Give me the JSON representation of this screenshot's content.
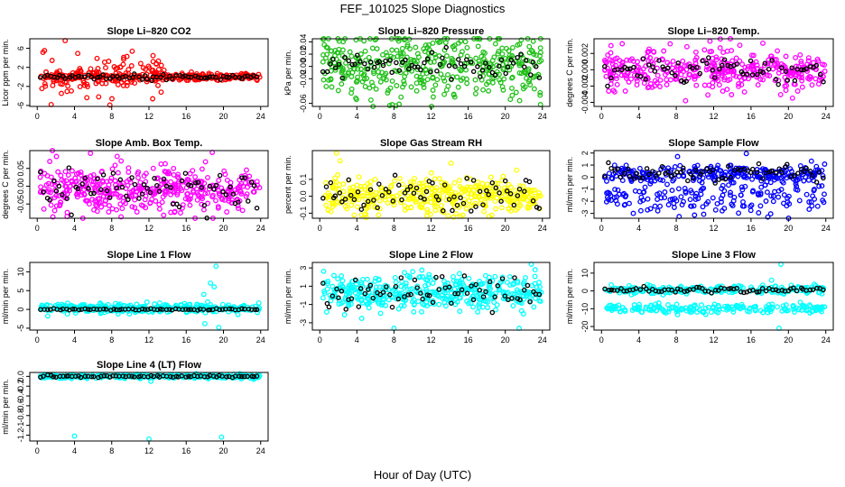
{
  "figure": {
    "title": "FEF_101025  Slope Diagnostics",
    "xlabel": "Hour of Day (UTC)"
  },
  "colors": {
    "axis": "#000000",
    "overlay": "#000000"
  },
  "chart_data": [
    {
      "type": "scatter",
      "title": "Slope Li–820 CO2",
      "ylabel": "Licor ppm per min.",
      "color": "#ff0000",
      "x_ticks": [
        0,
        4,
        8,
        12,
        16,
        20,
        24
      ],
      "y_ticks": [
        -6,
        -2,
        2,
        6
      ],
      "xlim": [
        -0.8,
        24.8
      ],
      "ylim": [
        -6.2,
        8.0
      ],
      "series": [
        {
          "name": "main",
          "band": [
            0,
            14
          ],
          "center": 0.3,
          "spread": 2.0,
          "center2": 0.0,
          "spread2": 0.4,
          "n": 380,
          "outliers": [
            [
              3.0,
              7.6
            ],
            [
              1.5,
              -5.8
            ],
            [
              7.8,
              -5.9
            ],
            [
              12.4,
              -4.6
            ],
            [
              6.6,
              -4.2
            ]
          ]
        },
        {
          "name": "overlay",
          "center": 0.0,
          "spread": 0.3,
          "n": 70
        }
      ]
    },
    {
      "type": "scatter",
      "title": "Slope Li–820 Pressure",
      "ylabel": "kPa per min.",
      "color": "#22c11a",
      "x_ticks": [
        0,
        4,
        8,
        12,
        16,
        20,
        24
      ],
      "y_ticks": [
        -0.06,
        -0.02,
        0.0,
        0.02,
        0.04
      ],
      "xlim": [
        -0.8,
        24.8
      ],
      "ylim": [
        -0.065,
        0.045
      ],
      "series": [
        {
          "name": "main",
          "center": 0.0,
          "spread": 0.025,
          "n": 420,
          "outliers": [
            [
              7.8,
              -0.062
            ],
            [
              23.8,
              -0.062
            ],
            [
              13.0,
              0.04
            ],
            [
              23.8,
              0.03
            ]
          ]
        },
        {
          "name": "overlay",
          "center": 0.0,
          "spread": 0.01,
          "n": 70
        }
      ]
    },
    {
      "type": "scatter",
      "title": "Slope Li–820 Temp.",
      "ylabel": "degrees C per min.",
      "color": "#ff00ff",
      "x_ticks": [
        0,
        4,
        8,
        12,
        16,
        20,
        24
      ],
      "y_ticks": [
        -0.004,
        -0.002,
        0.0,
        0.002
      ],
      "xlim": [
        -0.8,
        24.8
      ],
      "ylim": [
        -0.0045,
        0.0038
      ],
      "series": [
        {
          "name": "main",
          "center": 0.0,
          "spread": 0.0012,
          "n": 380,
          "outliers": [
            [
              11.6,
              0.0035
            ],
            [
              9.0,
              -0.0038
            ],
            [
              14.8,
              0.003
            ]
          ]
        },
        {
          "name": "overlay",
          "center": 0.0,
          "spread": 0.0008,
          "n": 70
        }
      ]
    },
    {
      "type": "scatter",
      "title": "Slope Amb. Box Temp.",
      "ylabel": "degrees C per min.",
      "color": "#ff00ff",
      "x_ticks": [
        0,
        4,
        8,
        12,
        16,
        20,
        24
      ],
      "y_ticks": [
        -0.05,
        0.0,
        0.05
      ],
      "xlim": [
        -0.8,
        24.8
      ],
      "ylim": [
        -0.09,
        0.1
      ],
      "series": [
        {
          "name": "main",
          "center": -0.01,
          "spread": 0.035,
          "n": 420,
          "outliers": [
            [
              18.8,
              0.095
            ],
            [
              3.2,
              -0.085
            ]
          ]
        },
        {
          "name": "overlay",
          "center": -0.01,
          "spread": 0.03,
          "n": 70
        }
      ]
    },
    {
      "type": "scatter",
      "title": "Slope Gas Stream RH",
      "ylabel": "percent per min.",
      "color": "#ffff00",
      "x_ticks": [
        0,
        4,
        8,
        12,
        16,
        20,
        24
      ],
      "y_ticks": [
        -0.1,
        0.0,
        0.1
      ],
      "xlim": [
        -0.8,
        24.8
      ],
      "ylim": [
        -0.13,
        0.27
      ],
      "series": [
        {
          "name": "main",
          "center": 0.0,
          "spread": 0.05,
          "n": 420,
          "outliers": [
            [
              1.8,
              0.255
            ],
            [
              2.2,
              0.21
            ],
            [
              5.0,
              -0.125
            ]
          ]
        },
        {
          "name": "overlay",
          "center": 0.0,
          "spread": 0.05,
          "n": 70
        }
      ]
    },
    {
      "type": "scatter",
      "title": "Slope Sample Flow",
      "ylabel": "ml/min per min.",
      "color": "#0000ff",
      "x_ticks": [
        0,
        4,
        8,
        12,
        16,
        20,
        24
      ],
      "y_ticks": [
        -3,
        -2,
        -1,
        0,
        1,
        2
      ],
      "xlim": [
        -0.8,
        24.8
      ],
      "ylim": [
        -3.4,
        2.2
      ],
      "series": [
        {
          "name": "main",
          "center": 0.3,
          "spread": 0.35,
          "center2": -1.6,
          "spread2": 0.7,
          "n": 420,
          "outliers": [
            [
              15.5,
              1.95
            ],
            [
              17.8,
              -3.3
            ]
          ]
        },
        {
          "name": "overlay",
          "center": 0.3,
          "spread": 0.35,
          "n": 70
        }
      ]
    },
    {
      "type": "scatter",
      "title": "Slope Line 1 Flow",
      "ylabel": "ml/min per min.",
      "color": "#00ffff",
      "x_ticks": [
        0,
        4,
        8,
        12,
        16,
        20,
        24
      ],
      "y_ticks": [
        -5,
        0,
        5,
        10
      ],
      "xlim": [
        -0.8,
        24.8
      ],
      "ylim": [
        -5.5,
        12.5
      ],
      "series": [
        {
          "name": "main",
          "center": 0.3,
          "spread": 0.6,
          "n": 340,
          "outliers": [
            [
              19.2,
              11.5
            ],
            [
              18.6,
              7.0
            ],
            [
              17.9,
              4.0
            ],
            [
              18.0,
              -3.8
            ],
            [
              19.5,
              -4.8
            ],
            [
              18.3,
              2.0
            ],
            [
              19.0,
              6.0
            ]
          ]
        },
        {
          "name": "overlay",
          "center": 0.0,
          "spread": 0.1,
          "n": 70
        }
      ]
    },
    {
      "type": "scatter",
      "title": "Slope Line 2 Flow",
      "ylabel": "ml/min per min.",
      "color": "#00ffff",
      "x_ticks": [
        0,
        4,
        8,
        12,
        16,
        20,
        24
      ],
      "y_ticks": [
        -3,
        -1,
        1,
        3
      ],
      "xlim": [
        -0.8,
        24.8
      ],
      "ylim": [
        -3.8,
        3.6
      ],
      "series": [
        {
          "name": "main",
          "center": 0.3,
          "spread": 0.9,
          "n": 420,
          "outliers": [
            [
              22.8,
              3.4
            ],
            [
              21.5,
              -3.6
            ],
            [
              8.0,
              -3.6
            ]
          ]
        },
        {
          "name": "overlay",
          "center": 0.3,
          "spread": 0.9,
          "n": 70
        }
      ]
    },
    {
      "type": "scatter",
      "title": "Slope Line 3 Flow",
      "ylabel": "ml/min per min.",
      "color": "#00ffff",
      "x_ticks": [
        0,
        4,
        8,
        12,
        16,
        20,
        24
      ],
      "y_ticks": [
        -20,
        -10,
        0,
        10
      ],
      "xlim": [
        -0.8,
        24.8
      ],
      "ylim": [
        -22,
        16
      ],
      "series": [
        {
          "name": "main",
          "center": 0.5,
          "spread": 1.2,
          "center2": -10.0,
          "spread2": 1.3,
          "n": 420,
          "outliers": [
            [
              19.2,
              15.0
            ],
            [
              19.0,
              -21.0
            ],
            [
              18.2,
              6.0
            ]
          ]
        },
        {
          "name": "overlay",
          "center": 0.5,
          "spread": 0.8,
          "n": 70
        }
      ]
    },
    {
      "type": "scatter",
      "title": "Slope Line 4 (LT) Flow",
      "ylabel": "ml/min per min.",
      "color": "#00ffff",
      "x_ticks": [
        0,
        4,
        8,
        12,
        16,
        20,
        24
      ],
      "y_ticks": [
        -1.2,
        -1.0,
        -0.8,
        -0.6,
        -0.4,
        -0.2,
        0.0
      ],
      "xlim": [
        -0.8,
        24.8
      ],
      "ylim": [
        -1.32,
        0.08
      ],
      "series": [
        {
          "name": "main",
          "center": 0.0,
          "spread": 0.02,
          "n": 340,
          "outliers": [
            [
              4.0,
              -1.22
            ],
            [
              12.0,
              -1.28
            ],
            [
              19.8,
              -1.24
            ],
            [
              12.2,
              -0.1
            ]
          ]
        },
        {
          "name": "overlay",
          "center": 0.0,
          "spread": 0.01,
          "n": 70
        }
      ]
    }
  ]
}
